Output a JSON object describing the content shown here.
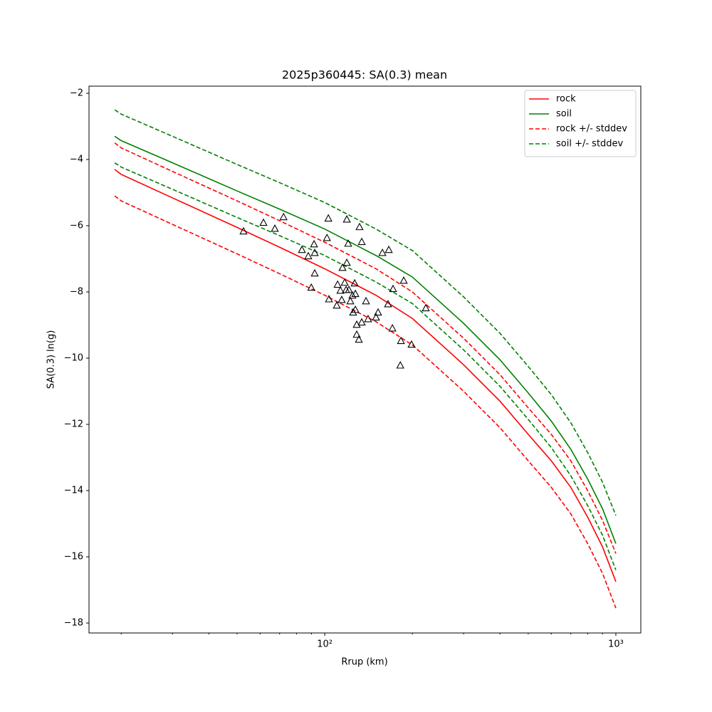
{
  "chart_data": {
    "type": "line",
    "title": "2025p360445: SA(0.3) mean",
    "x_label": "Rrup (km)",
    "y_label": "SA(0.3) ln(g)",
    "xscale": "log",
    "xlim": [
      15.5,
      1218
    ],
    "ylim": [
      -18.3,
      -1.785
    ],
    "xticks": [
      {
        "value": 100,
        "label": "10²"
      },
      {
        "value": 1000,
        "label": "10³"
      }
    ],
    "xminorticks": [
      20,
      30,
      40,
      50,
      60,
      70,
      80,
      90,
      200,
      300,
      400,
      500,
      600,
      700,
      800,
      900
    ],
    "yticks": [
      {
        "value": -2,
        "label": "−2"
      },
      {
        "value": -4,
        "label": "−4"
      },
      {
        "value": -6,
        "label": "−6"
      },
      {
        "value": -8,
        "label": "−8"
      },
      {
        "value": -10,
        "label": "−10"
      },
      {
        "value": -12,
        "label": "−12"
      },
      {
        "value": -14,
        "label": "−14"
      },
      {
        "value": -16,
        "label": "−16"
      },
      {
        "value": -18,
        "label": "−18"
      }
    ],
    "legend": "upper right",
    "x": [
      19,
      20,
      30,
      50,
      70,
      100,
      150,
      200,
      300,
      400,
      500,
      600,
      700,
      800,
      900,
      1000
    ],
    "series": [
      {
        "name": "rock",
        "color": "#ff0000",
        "dash": false,
        "values": [
          -4.3,
          -4.45,
          -5.16,
          -6.05,
          -6.65,
          -7.3,
          -8.1,
          -8.8,
          -10.2,
          -11.3,
          -12.3,
          -13.1,
          -13.9,
          -14.8,
          -15.7,
          -16.75
        ]
      },
      {
        "name": "soil",
        "color": "#008000",
        "dash": false,
        "values": [
          -3.3,
          -3.43,
          -4.1,
          -4.95,
          -5.5,
          -6.1,
          -6.9,
          -7.55,
          -8.95,
          -10.05,
          -11.05,
          -11.9,
          -12.75,
          -13.65,
          -14.55,
          -15.6
        ]
      },
      {
        "name": "rock +/- stddev",
        "color": "#ff0000",
        "dash": true,
        "upper": [
          -3.5,
          -3.65,
          -4.36,
          -5.25,
          -5.85,
          -6.5,
          -7.3,
          -8.0,
          -9.4,
          -10.5,
          -11.5,
          -12.3,
          -13.1,
          -14.0,
          -14.9,
          -15.9
        ],
        "lower": [
          -5.1,
          -5.25,
          -5.96,
          -6.85,
          -7.45,
          -8.1,
          -8.9,
          -9.6,
          -11.0,
          -12.1,
          -13.1,
          -13.9,
          -14.7,
          -15.6,
          -16.5,
          -17.55
        ]
      },
      {
        "name": "soil +/- stddev",
        "color": "#008000",
        "dash": true,
        "upper": [
          -2.5,
          -2.63,
          -3.3,
          -4.15,
          -4.7,
          -5.3,
          -6.1,
          -6.75,
          -8.15,
          -9.25,
          -10.25,
          -11.1,
          -11.95,
          -12.85,
          -13.75,
          -14.75
        ],
        "lower": [
          -4.1,
          -4.23,
          -4.9,
          -5.75,
          -6.3,
          -6.9,
          -7.7,
          -8.35,
          -9.75,
          -10.85,
          -11.85,
          -12.7,
          -13.55,
          -14.45,
          -15.35,
          -16.4
        ]
      }
    ],
    "observations": {
      "color": "#000000",
      "x": [
        52.6,
        61.6,
        67.4,
        72.2,
        83.5,
        87.8,
        91.9,
        92.4,
        92.4,
        89.9,
        102.9,
        101.8,
        103.4,
        110.0,
        110.7,
        113.2,
        114.4,
        115.1,
        117.1,
        118.4,
        119.1,
        119.1,
        120.4,
        121.1,
        122.5,
        124.5,
        125.2,
        126.7,
        127.4,
        127.4,
        128.8,
        128.8,
        131.0,
        131.7,
        134.0,
        134.0,
        138.6,
        140.9,
        150.0,
        152.5,
        157.8,
        166.0,
        165.0,
        171.7,
        170.8,
        182.7,
        186.8,
        198.7,
        222.4,
        181.8
      ],
      "y": [
        -6.17,
        -5.91,
        -6.09,
        -5.74,
        -6.73,
        -6.92,
        -6.56,
        -6.82,
        -7.44,
        -7.87,
        -5.78,
        -6.37,
        -8.22,
        -8.41,
        -7.78,
        -7.96,
        -8.24,
        -7.27,
        -7.72,
        -7.94,
        -7.12,
        -5.81,
        -6.54,
        -7.94,
        -8.28,
        -8.11,
        -8.62,
        -7.74,
        -8.06,
        -8.54,
        -8.99,
        -9.29,
        -9.44,
        -6.04,
        -6.49,
        -8.92,
        -8.28,
        -8.82,
        -8.77,
        -8.62,
        -6.82,
        -6.73,
        -8.37,
        -7.91,
        -9.1,
        -9.48,
        -7.66,
        -9.59,
        -8.49,
        -10.22
      ]
    }
  }
}
